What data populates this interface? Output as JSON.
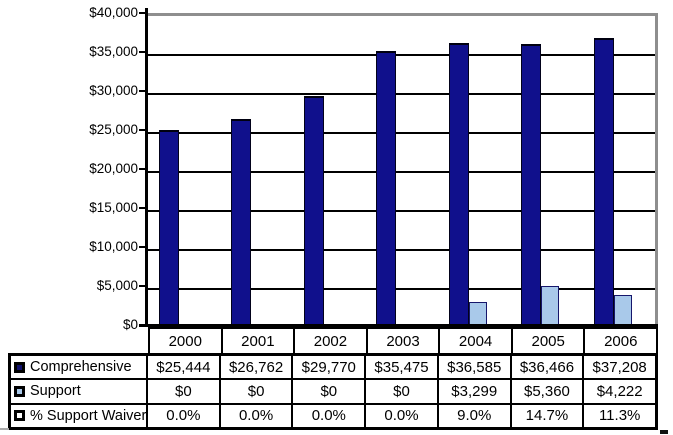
{
  "chart_data": {
    "type": "bar",
    "title": "",
    "categories": [
      "2000",
      "2001",
      "2002",
      "2003",
      "2004",
      "2005",
      "2006"
    ],
    "series": [
      {
        "name": "Comprehensive",
        "color": "#10108c",
        "key_fill": "#10106c",
        "values": [
          25444,
          26762,
          29770,
          35475,
          36585,
          36466,
          37208
        ],
        "formatted": [
          "$25,444",
          "$26,762",
          "$29,770",
          "$35,475",
          "$36,585",
          "$36,466",
          "$37,208"
        ]
      },
      {
        "name": "Support",
        "color": "#a9c9ea",
        "key_fill": "#a9c9ea",
        "values": [
          0,
          0,
          0,
          0,
          3299,
          5360,
          4222
        ],
        "formatted": [
          "$0",
          "$0",
          "$0",
          "$0",
          "$3,299",
          "$5,360",
          "$4,222"
        ]
      },
      {
        "name": "% Support Waiver",
        "color": "#ffffff",
        "key_fill": "#ffffff",
        "values": [
          0.0,
          0.0,
          0.0,
          0.0,
          9.0,
          14.7,
          11.3
        ],
        "formatted": [
          "0.0%",
          "0.0%",
          "0.0%",
          "0.0%",
          "9.0%",
          "14.7%",
          "11.3%"
        ]
      }
    ],
    "ylim": [
      0,
      40000
    ],
    "ytick_step": 5000,
    "ytick_labels": [
      "$40,000",
      "$35,000",
      "$30,000",
      "$25,000",
      "$20,000",
      "$15,000",
      "$10,000",
      "$5,000",
      "$0"
    ],
    "grid": true,
    "legend_position": "data-table-left-keys",
    "colors": {
      "axis": "#000000",
      "gridline": "#000000",
      "plot_frame": "#8e8e8e",
      "table_border": "#000000",
      "text": "#000000",
      "background": "#ffffff"
    }
  }
}
